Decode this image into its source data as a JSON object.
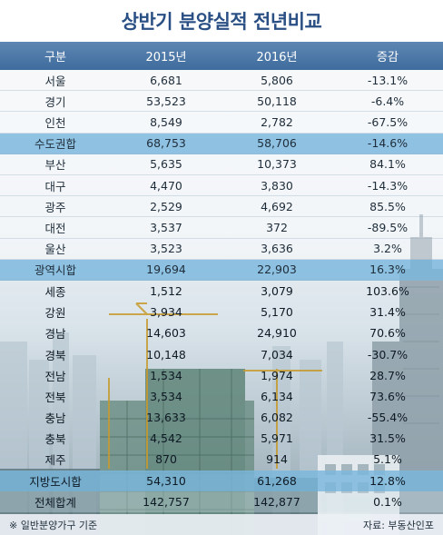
{
  "title": "상반기 분양실적 전년비교",
  "columns": [
    "구분",
    "2015년",
    "2016년",
    "증감"
  ],
  "rows": [
    {
      "region": "서울",
      "y2015": "6,681",
      "y2016": "5,806",
      "change": "-13.1%"
    },
    {
      "region": "경기",
      "y2015": "53,523",
      "y2016": "50,118",
      "change": "-6.4%"
    },
    {
      "region": "인천",
      "y2015": "8,549",
      "y2016": "2,782",
      "change": "-67.5%"
    },
    {
      "region": "수도권합",
      "y2015": "68,753",
      "y2016": "58,706",
      "change": "-14.6%",
      "subtotal": true
    },
    {
      "region": "부산",
      "y2015": "5,635",
      "y2016": "10,373",
      "change": "84.1%"
    },
    {
      "region": "대구",
      "y2015": "4,470",
      "y2016": "3,830",
      "change": "-14.3%"
    },
    {
      "region": "광주",
      "y2015": "2,529",
      "y2016": "4,692",
      "change": "85.5%"
    },
    {
      "region": "대전",
      "y2015": "3,537",
      "y2016": "372",
      "change": "-89.5%"
    },
    {
      "region": "울산",
      "y2015": "3,523",
      "y2016": "3,636",
      "change": "3.2%"
    },
    {
      "region": "광역시합",
      "y2015": "19,694",
      "y2016": "22,903",
      "change": "16.3%",
      "subtotal": true
    },
    {
      "region": "세종",
      "y2015": "1,512",
      "y2016": "3,079",
      "change": "103.6%"
    },
    {
      "region": "강원",
      "y2015": "3,934",
      "y2016": "5,170",
      "change": "31.4%"
    },
    {
      "region": "경남",
      "y2015": "14,603",
      "y2016": "24,910",
      "change": "70.6%"
    },
    {
      "region": "경북",
      "y2015": "10,148",
      "y2016": "7,034",
      "change": "-30.7%"
    },
    {
      "region": "전남",
      "y2015": "1,534",
      "y2016": "1,974",
      "change": "28.7%"
    },
    {
      "region": "전북",
      "y2015": "3,534",
      "y2016": "6,134",
      "change": "73.6%"
    },
    {
      "region": "충남",
      "y2015": "13,633",
      "y2016": "6,082",
      "change": "-55.4%"
    },
    {
      "region": "충북",
      "y2015": "4,542",
      "y2016": "5,971",
      "change": "31.5%"
    },
    {
      "region": "제주",
      "y2015": "870",
      "y2016": "914",
      "change": "5.1%"
    },
    {
      "region": "지방도시합",
      "y2015": "54,310",
      "y2016": "61,268",
      "change": "12.8%",
      "subtotal": true
    },
    {
      "region": "전체합계",
      "y2015": "142,757",
      "y2016": "142,877",
      "change": "0.1%",
      "total": true
    }
  ],
  "footer": {
    "note": "※ 일반분양가구 기준",
    "source": "자료: 부동산인포"
  },
  "colors": {
    "title": "#2a4f84",
    "header": "#4f79a8",
    "subtotal": "#7ab7dd"
  }
}
